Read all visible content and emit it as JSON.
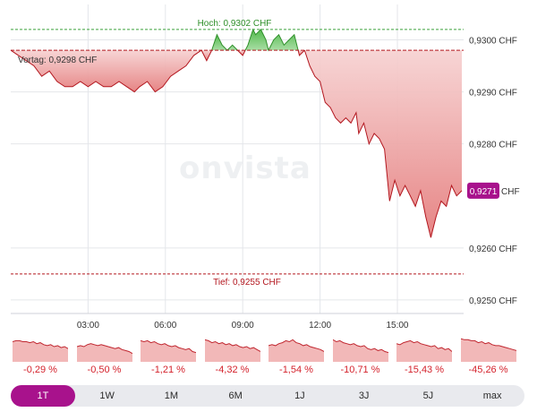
{
  "chart_data": {
    "type": "area",
    "watermark": "onvista",
    "x_ticks": [
      {
        "label": "03:00",
        "value": 3
      },
      {
        "label": "06:00",
        "value": 6
      },
      {
        "label": "09:00",
        "value": 9
      },
      {
        "label": "12:00",
        "value": 12
      },
      {
        "label": "15:00",
        "value": 15
      }
    ],
    "y_ticks": [
      {
        "label": "0,9300 CHF",
        "value": 0.93
      },
      {
        "label": "0,9290 CHF",
        "value": 0.929
      },
      {
        "label": "0,9280 CHF",
        "value": 0.928
      },
      {
        "label": "0,9260 CHF",
        "value": 0.926
      },
      {
        "label": "0,9250 CHF",
        "value": 0.925
      }
    ],
    "xlim": [
      0,
      17.57
    ],
    "ylim": [
      0.92474,
      0.93068
    ],
    "high": {
      "label": "Hoch: 0,9302 CHF",
      "value": 0.9302
    },
    "low": {
      "label": "Tief: 0,9255 CHF",
      "value": 0.9255
    },
    "previous_close": {
      "label": "Vortag: 0,9298 CHF",
      "value": 0.9298
    },
    "current": {
      "label": "0,9271",
      "unit": "CHF",
      "value": 0.9271
    },
    "series": [
      {
        "points": [
          [
            0.0,
            0.9298
          ],
          [
            0.3,
            0.9297
          ],
          [
            0.6,
            0.9296
          ],
          [
            0.9,
            0.9295
          ],
          [
            1.2,
            0.9293
          ],
          [
            1.5,
            0.9294
          ],
          [
            1.8,
            0.9292
          ],
          [
            2.1,
            0.9291
          ],
          [
            2.4,
            0.9291
          ],
          [
            2.7,
            0.9292
          ],
          [
            3.0,
            0.9291
          ],
          [
            3.3,
            0.9292
          ],
          [
            3.6,
            0.9291
          ],
          [
            3.9,
            0.9291
          ],
          [
            4.2,
            0.9292
          ],
          [
            4.5,
            0.9291
          ],
          [
            4.8,
            0.929
          ],
          [
            5.0,
            0.9291
          ],
          [
            5.3,
            0.9292
          ],
          [
            5.6,
            0.929
          ],
          [
            5.9,
            0.9291
          ],
          [
            6.2,
            0.9293
          ],
          [
            6.5,
            0.9294
          ],
          [
            6.8,
            0.9295
          ],
          [
            7.1,
            0.9297
          ],
          [
            7.4,
            0.9298
          ],
          [
            7.6,
            0.9296
          ],
          [
            7.8,
            0.9298
          ],
          [
            8.0,
            0.9301
          ],
          [
            8.2,
            0.9299
          ],
          [
            8.4,
            0.9298
          ],
          [
            8.6,
            0.9299
          ],
          [
            8.8,
            0.9298
          ],
          [
            9.0,
            0.9297
          ],
          [
            9.2,
            0.9299
          ],
          [
            9.4,
            0.9302
          ],
          [
            9.5,
            0.9301
          ],
          [
            9.7,
            0.9302
          ],
          [
            9.9,
            0.93
          ],
          [
            10.0,
            0.9298
          ],
          [
            10.2,
            0.93
          ],
          [
            10.4,
            0.9301
          ],
          [
            10.6,
            0.9299
          ],
          [
            10.8,
            0.93
          ],
          [
            11.0,
            0.9301
          ],
          [
            11.2,
            0.9297
          ],
          [
            11.4,
            0.9298
          ],
          [
            11.6,
            0.9295
          ],
          [
            11.8,
            0.9293
          ],
          [
            12.0,
            0.9292
          ],
          [
            12.2,
            0.9288
          ],
          [
            12.4,
            0.9287
          ],
          [
            12.6,
            0.9285
          ],
          [
            12.8,
            0.9284
          ],
          [
            13.0,
            0.9285
          ],
          [
            13.2,
            0.9284
          ],
          [
            13.4,
            0.9286
          ],
          [
            13.5,
            0.9282
          ],
          [
            13.7,
            0.9284
          ],
          [
            13.9,
            0.928
          ],
          [
            14.1,
            0.9282
          ],
          [
            14.3,
            0.9281
          ],
          [
            14.5,
            0.9279
          ],
          [
            14.7,
            0.9269
          ],
          [
            14.9,
            0.9273
          ],
          [
            15.1,
            0.927
          ],
          [
            15.3,
            0.9272
          ],
          [
            15.5,
            0.927
          ],
          [
            15.7,
            0.9268
          ],
          [
            15.9,
            0.9271
          ],
          [
            16.1,
            0.9266
          ],
          [
            16.3,
            0.9262
          ],
          [
            16.5,
            0.9266
          ],
          [
            16.7,
            0.9269
          ],
          [
            16.9,
            0.9268
          ],
          [
            17.1,
            0.9272
          ],
          [
            17.3,
            0.927
          ],
          [
            17.5,
            0.9271
          ]
        ]
      }
    ],
    "grid": true
  },
  "periods": [
    {
      "label": "1T",
      "pct": "-0,29 %",
      "active": true
    },
    {
      "label": "1W",
      "pct": "-0,50 %",
      "active": false
    },
    {
      "label": "1M",
      "pct": "-1,21 %",
      "active": false
    },
    {
      "label": "6M",
      "pct": "-4,32 %",
      "active": false
    },
    {
      "label": "1J",
      "pct": "-1,54 %",
      "active": false
    },
    {
      "label": "3J",
      "pct": "-10,71 %",
      "active": false
    },
    {
      "label": "5J",
      "pct": "-15,43 %",
      "active": false
    },
    {
      "label": "max",
      "pct": "-45,26 %",
      "active": false
    }
  ],
  "colors": {
    "down_line": "#b3171f",
    "down_fill": "#e88a8a",
    "up_line": "#2f8f2a",
    "up_fill": "#7ed07a",
    "high_line": "#3aa23a",
    "low_line": "#b3171f",
    "accent": "#a8128c",
    "grid": "#e4e6ea",
    "axis_text": "#333333"
  }
}
